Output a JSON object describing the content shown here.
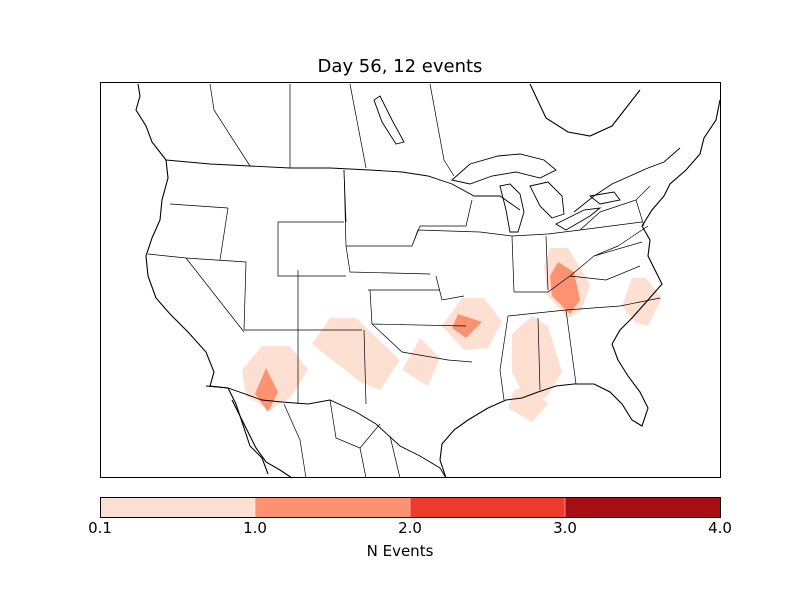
{
  "title": "Day 56, 12 events",
  "colorbar": {
    "label": "N Events",
    "ticks": [
      "0.1",
      "1.0",
      "2.0",
      "3.0",
      "4.0"
    ],
    "bins": [
      {
        "range": [
          0.1,
          1.0
        ],
        "color": "#fee0d2"
      },
      {
        "range": [
          1.0,
          2.0
        ],
        "color": "#fc9272"
      },
      {
        "range": [
          2.0,
          3.0
        ],
        "color": "#ef3b2c"
      },
      {
        "range": [
          3.0,
          4.0
        ],
        "color": "#a50f15"
      }
    ]
  },
  "map": {
    "region": "contiguous United States with southern Canada and northern Mexico",
    "features": [
      "coastlines",
      "country borders",
      "state borders",
      "great lakes"
    ]
  },
  "event_regions": [
    {
      "name": "southwest-arizona",
      "level": 1
    },
    {
      "name": "southwest-arizona-core",
      "level": 2
    },
    {
      "name": "panhandle",
      "level": 1
    },
    {
      "name": "oklahoma",
      "level": 1
    },
    {
      "name": "arkansas-missouri",
      "level": 1
    },
    {
      "name": "arkansas-missouri-core",
      "level": 2
    },
    {
      "name": "mississippi-alabama",
      "level": 1
    },
    {
      "name": "gulf-coast",
      "level": 1
    },
    {
      "name": "kentucky-tennessee",
      "level": 1
    },
    {
      "name": "kentucky-tennessee-core",
      "level": 2
    },
    {
      "name": "north-carolina",
      "level": 1
    }
  ]
}
